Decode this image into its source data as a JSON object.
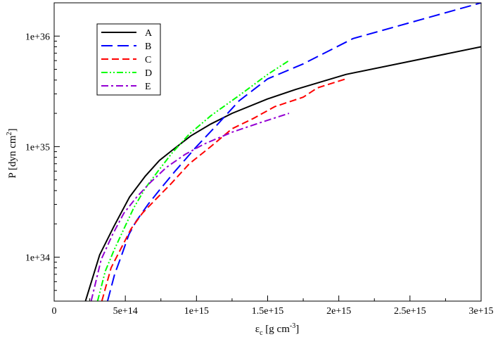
{
  "chart_data": {
    "type": "line",
    "xlabel": "ε",
    "xlabel_sub": "c",
    "xlabel_units": "[g cm",
    "xlabel_units_exp": "-3",
    "xlabel_units_close": "]",
    "ylabel": "P [dyn cm",
    "ylabel_exp": "2",
    "ylabel_close": "]",
    "xlim": [
      0,
      3000000000000000.0
    ],
    "ylim": [
      4e+33,
      2e+36
    ],
    "yscale": "log",
    "grid": false,
    "legend_position": "top-left",
    "x_ticks": [
      {
        "value": 0,
        "label": "0"
      },
      {
        "value": 500000000000000.0,
        "label": "5e+14"
      },
      {
        "value": 1000000000000000.0,
        "label": "1e+15"
      },
      {
        "value": 1500000000000000.0,
        "label": "1.5e+15"
      },
      {
        "value": 2000000000000000.0,
        "label": "2e+15"
      },
      {
        "value": 2500000000000000.0,
        "label": "2.5e+15"
      },
      {
        "value": 3000000000000000.0,
        "label": "3e+15"
      }
    ],
    "y_ticks": [
      {
        "value": 1e+34,
        "label": "1e+34"
      },
      {
        "value": 1e+35,
        "label": "1e+35"
      },
      {
        "value": 1e+36,
        "label": "1e+36"
      }
    ],
    "series": [
      {
        "name": "A",
        "color": "#000000",
        "dash": "solid",
        "x": [
          220000000000000.0,
          320000000000000.0,
          420000000000000.0,
          530000000000000.0,
          640000000000000.0,
          740000000000000.0,
          840000000000000.0,
          960000000000000.0,
          1100000000000000.0,
          1250000000000000.0,
          1500000000000000.0,
          1700000000000000.0,
          2050000000000000.0,
          3000000000000000.0
        ],
        "y": [
          4e+33,
          1.05e+34,
          1.9e+34,
          3.5e+34,
          5.4e+34,
          7.5e+34,
          9.5e+34,
          1.25e+35,
          1.6e+35,
          2e+35,
          2.7e+35,
          3.3e+35,
          4.5e+35,
          8e+35
        ]
      },
      {
        "name": "B",
        "color": "#0000ff",
        "dash": "long-dash",
        "x": [
          375000000000000.0,
          425000000000000.0,
          475000000000000.0,
          525000000000000.0,
          575000000000000.0,
          660000000000000.0,
          750000000000000.0,
          850000000000000.0,
          1000000000000000.0,
          1150000000000000.0,
          1300000000000000.0,
          1500000000000000.0,
          1750000000000000.0,
          2100000000000000.0,
          3000000000000000.0
        ],
        "y": [
          4e+33,
          7e+33,
          1.05e+34,
          1.6e+34,
          2.1e+34,
          3e+34,
          4.2e+34,
          6e+34,
          1e+35,
          1.6e+35,
          2.6e+35,
          4.1e+35,
          5.6e+35,
          9.5e+35,
          2e+36
        ]
      },
      {
        "name": "C",
        "color": "#ff0000",
        "dash": "dash",
        "x": [
          335000000000000.0,
          400000000000000.0,
          470000000000000.0,
          540000000000000.0,
          620000000000000.0,
          720000000000000.0,
          820000000000000.0,
          950000000000000.0,
          1100000000000000.0,
          1250000000000000.0,
          1400000000000000.0,
          1550000000000000.0,
          1750000000000000.0,
          1850000000000000.0,
          2050000000000000.0
        ],
        "y": [
          4e+33,
          8e+33,
          1.2e+34,
          1.8e+34,
          2.5e+34,
          3.4e+34,
          4.6e+34,
          7e+34,
          1e+35,
          1.45e+35,
          1.8e+35,
          2.3e+35,
          2.8e+35,
          3.4e+35,
          4.1e+35
        ]
      },
      {
        "name": "D",
        "color": "#00ff00",
        "dash": "dash-dot-dot",
        "x": [
          305000000000000.0,
          360000000000000.0,
          420000000000000.0,
          490000000000000.0,
          560000000000000.0,
          640000000000000.0,
          730000000000000.0,
          830000000000000.0,
          950000000000000.0,
          1100000000000000.0,
          1300000000000000.0,
          1500000000000000.0,
          1650000000000000.0
        ],
        "y": [
          4e+33,
          7.5e+33,
          1.15e+34,
          1.8e+34,
          2.8e+34,
          4.2e+34,
          6e+34,
          8.8e+34,
          1.3e+35,
          1.9e+35,
          2.9e+35,
          4.5e+35,
          6e+35
        ]
      },
      {
        "name": "E",
        "color": "#9400d3",
        "dash": "dash-dot",
        "x": [
          260000000000000.0,
          330000000000000.0,
          410000000000000.0,
          490000000000000.0,
          580000000000000.0,
          680000000000000.0,
          790000000000000.0,
          920000000000000.0,
          1050000000000000.0,
          1250000000000000.0,
          1450000000000000.0,
          1650000000000000.0
        ],
        "y": [
          4e+33,
          9.5e+33,
          1.6e+34,
          2.5e+34,
          3.5e+34,
          4.8e+34,
          6.5e+34,
          8.5e+34,
          1.05e+35,
          1.35e+35,
          1.65e+35,
          2e+35
        ]
      }
    ]
  }
}
